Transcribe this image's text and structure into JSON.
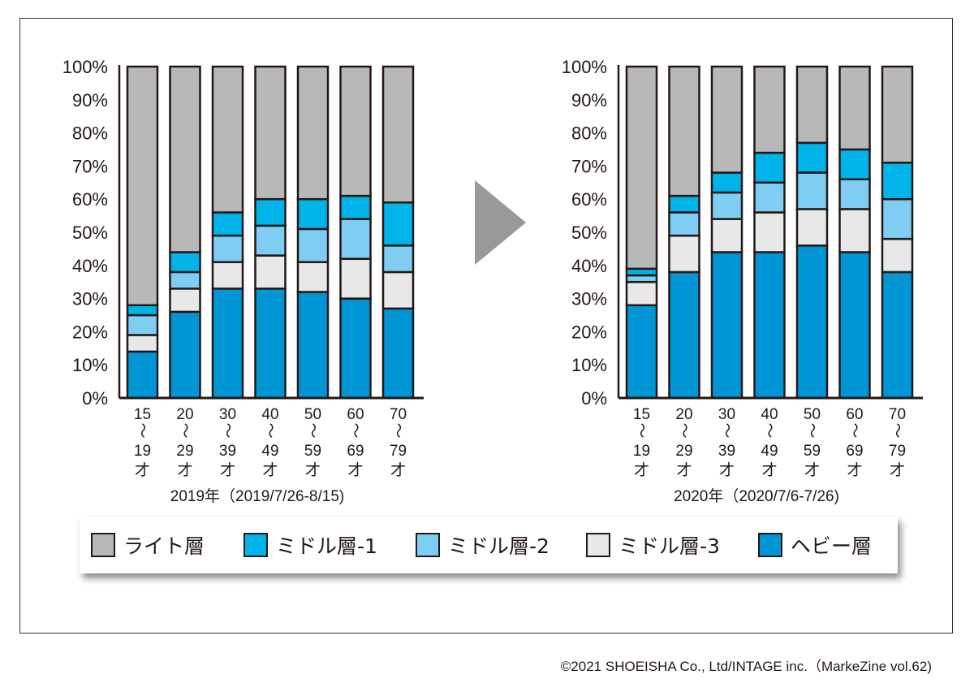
{
  "chart_data": [
    {
      "type": "bar",
      "stacked": true,
      "title": "2019年（2019/7/26-8/15)",
      "ylim": [
        0,
        100
      ],
      "yticks": [
        "0%",
        "10%",
        "20%",
        "30%",
        "40%",
        "50%",
        "60%",
        "70%",
        "80%",
        "90%",
        "100%"
      ],
      "categories": [
        [
          "15",
          "〜",
          "19",
          "才"
        ],
        [
          "20",
          "〜",
          "29",
          "才"
        ],
        [
          "30",
          "〜",
          "39",
          "才"
        ],
        [
          "40",
          "〜",
          "49",
          "才"
        ],
        [
          "50",
          "〜",
          "59",
          "才"
        ],
        [
          "60",
          "〜",
          "69",
          "才"
        ],
        [
          "70",
          "〜",
          "79",
          "才"
        ]
      ],
      "series": [
        {
          "name": "ヘビー層",
          "values": [
            14,
            26,
            33,
            33,
            32,
            30,
            27
          ]
        },
        {
          "name": "ミドル層-3",
          "values": [
            5,
            7,
            8,
            10,
            9,
            12,
            11
          ]
        },
        {
          "name": "ミドル層-2",
          "values": [
            6,
            5,
            8,
            9,
            10,
            12,
            8
          ]
        },
        {
          "name": "ミドル層-1",
          "values": [
            3,
            6,
            7,
            8,
            9,
            7,
            13
          ]
        },
        {
          "name": "ライト層",
          "values": [
            72,
            56,
            44,
            40,
            40,
            39,
            41
          ]
        }
      ]
    },
    {
      "type": "bar",
      "stacked": true,
      "title": "2020年（2020/7/6-7/26)",
      "ylim": [
        0,
        100
      ],
      "yticks": [
        "0%",
        "10%",
        "20%",
        "30%",
        "40%",
        "50%",
        "60%",
        "70%",
        "80%",
        "90%",
        "100%"
      ],
      "categories": [
        [
          "15",
          "〜",
          "19",
          "才"
        ],
        [
          "20",
          "〜",
          "29",
          "才"
        ],
        [
          "30",
          "〜",
          "39",
          "才"
        ],
        [
          "40",
          "〜",
          "49",
          "才"
        ],
        [
          "50",
          "〜",
          "59",
          "才"
        ],
        [
          "60",
          "〜",
          "69",
          "才"
        ],
        [
          "70",
          "〜",
          "79",
          "才"
        ]
      ],
      "series": [
        {
          "name": "ヘビー層",
          "values": [
            28,
            38,
            44,
            44,
            46,
            44,
            38
          ]
        },
        {
          "name": "ミドル層-3",
          "values": [
            7,
            11,
            10,
            12,
            11,
            13,
            10
          ]
        },
        {
          "name": "ミドル層-2",
          "values": [
            2,
            7,
            8,
            9,
            11,
            9,
            12
          ]
        },
        {
          "name": "ミドル層-1",
          "values": [
            2,
            5,
            6,
            9,
            9,
            9,
            11
          ]
        },
        {
          "name": "ライト層",
          "values": [
            61,
            39,
            32,
            26,
            23,
            25,
            29
          ]
        }
      ]
    }
  ],
  "colors": {
    "ヘビー層": "#0096d6",
    "ミドル層-3": "#e8e8e8",
    "ミドル層-2": "#7fcdf2",
    "ミドル層-1": "#00b4ea",
    "ライト層": "#b8b8b8"
  },
  "legend": [
    {
      "label": "ライト層",
      "color": "#b8b8b8"
    },
    {
      "label": "ミドル層-1",
      "color": "#00b4ea"
    },
    {
      "label": "ミドル層-2",
      "color": "#7fcdf2"
    },
    {
      "label": "ミドル層-3",
      "color": "#e8e8e8"
    },
    {
      "label": "ヘビー層",
      "color": "#0096d6"
    }
  ],
  "credit": "©2021 SHOEISHA Co., Ltd/INTAGE inc.（MarkeZine vol.62)"
}
